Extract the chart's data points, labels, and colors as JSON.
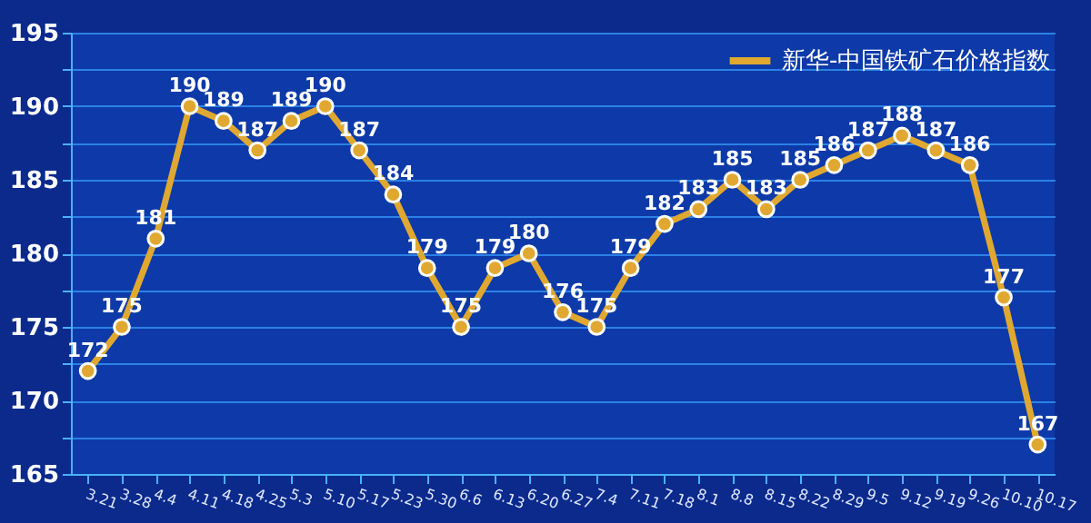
{
  "chart_data": {
    "type": "line",
    "categories": [
      "3.21",
      "3.28",
      "4.4",
      "4.11",
      "4.18",
      "4.25",
      "5.3",
      "5.10",
      "5.17",
      "5.23",
      "5.30",
      "6.6",
      "6.13",
      "6.20",
      "6.27",
      "7.4",
      "7.11",
      "7.18",
      "8.1",
      "8.8",
      "8.15",
      "8.22",
      "8.29",
      "9.5",
      "9.12",
      "9.19",
      "9.26",
      "10.10",
      "10.17"
    ],
    "series": [
      {
        "name": "新华-中国铁矿石价格指数",
        "color": "#e0a830",
        "values": [
          172,
          175,
          181,
          190,
          189,
          187,
          189,
          190,
          187,
          184,
          179,
          175,
          179,
          180,
          176,
          175,
          179,
          182,
          183,
          185,
          183,
          185,
          186,
          187,
          188,
          187,
          186,
          177,
          167
        ]
      }
    ],
    "ylim": [
      165,
      195
    ],
    "yticks": [
      165,
      {
        "value": 167.5,
        "label": null
      },
      170,
      {
        "value": 172.5,
        "label": null
      },
      175,
      {
        "value": 177.5,
        "label": null
      },
      180,
      {
        "value": 182.5,
        "label": null
      },
      185,
      {
        "value": 187.5,
        "label": null
      },
      190,
      {
        "value": 192.5,
        "label": null
      },
      195
    ],
    "grid": "y",
    "legend": "top right",
    "marker": "circle",
    "line_style": "solid",
    "data_labels": true
  }
}
